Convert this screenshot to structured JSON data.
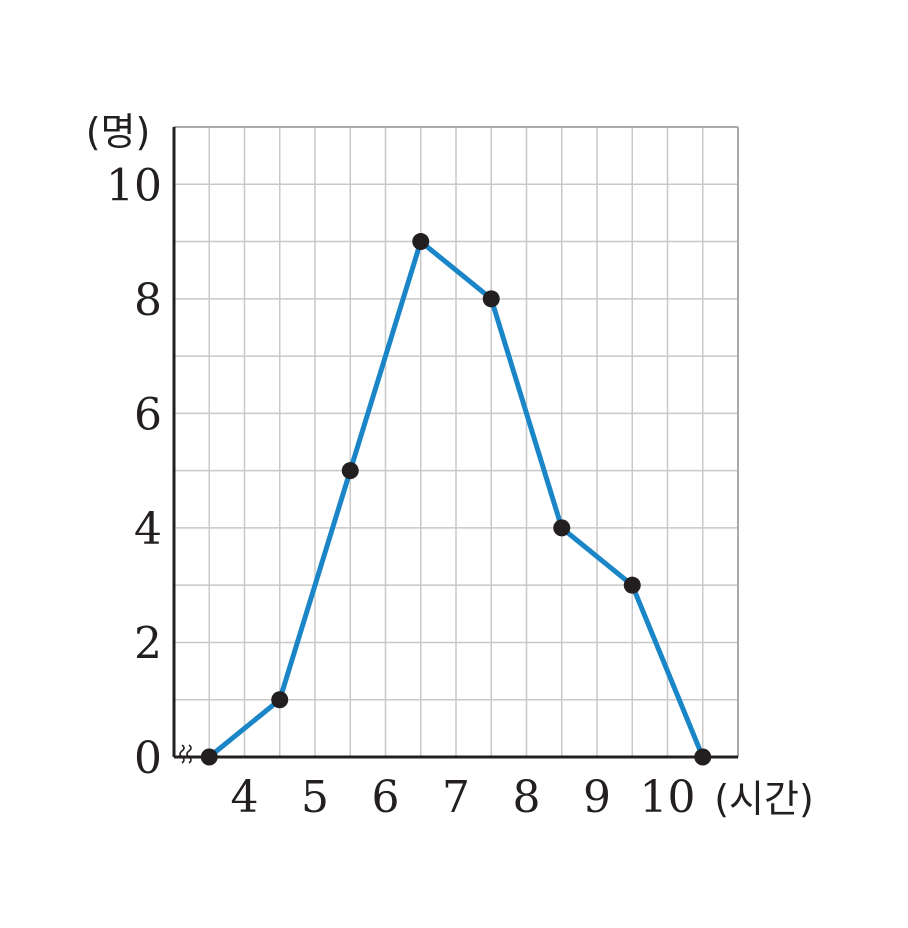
{
  "chart_data": {
    "type": "line",
    "x_tick_labels": [
      "4",
      "5",
      "6",
      "7",
      "8",
      "9",
      "10"
    ],
    "y_tick_labels": [
      "0",
      "2",
      "4",
      "6",
      "8",
      "10"
    ],
    "x_unit": "(시간)",
    "y_unit": "(명)",
    "xlim": [
      3,
      11
    ],
    "ylim": [
      0,
      11
    ],
    "grid": true,
    "axis_break": true,
    "series": [
      {
        "color": "#1a86c8",
        "points": [
          {
            "x": 3.5,
            "y": 0
          },
          {
            "x": 4.5,
            "y": 1
          },
          {
            "x": 5.5,
            "y": 5
          },
          {
            "x": 6.5,
            "y": 9
          },
          {
            "x": 7.5,
            "y": 8
          },
          {
            "x": 8.5,
            "y": 4
          },
          {
            "x": 9.5,
            "y": 3
          },
          {
            "x": 10.5,
            "y": 0
          }
        ]
      }
    ],
    "colors": {
      "line": "#1a86c8",
      "marker": "#231f20",
      "grid": "#c8c8c8",
      "axis": "#231f20"
    }
  }
}
